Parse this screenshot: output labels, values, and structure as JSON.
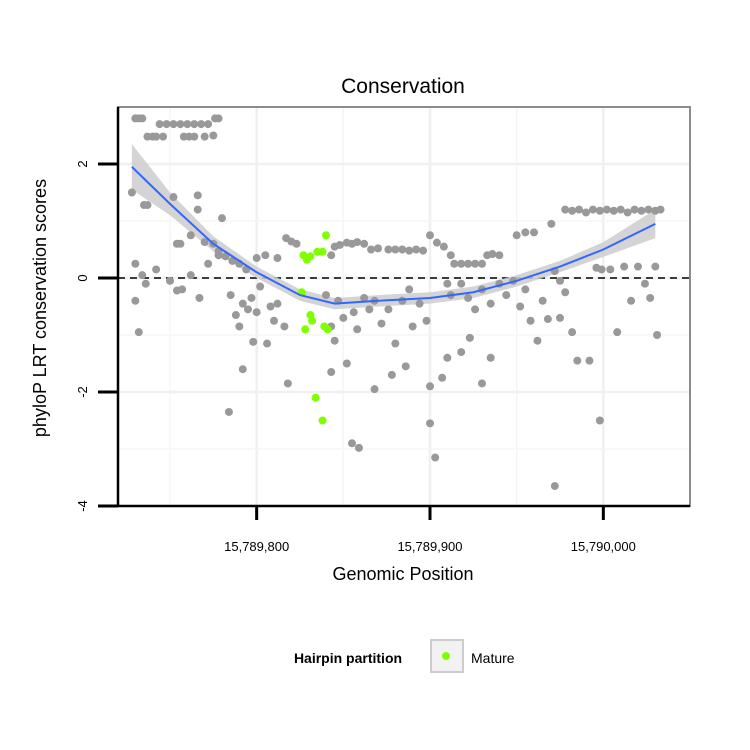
{
  "chart_data": {
    "type": "scatter",
    "title": "Conservation",
    "xlabel": "Genomic Position",
    "ylabel": "phyloP LRT conservation scores",
    "xlim": [
      15789720,
      15790050
    ],
    "ylim": [
      -4,
      3
    ],
    "x_ticks": [
      {
        "value": 15789800,
        "label": "15,789,800"
      },
      {
        "value": 15789900,
        "label": "15,789,900"
      },
      {
        "value": 15790000,
        "label": "15,790,000"
      }
    ],
    "y_ticks": [
      {
        "value": 2,
        "label": "2"
      },
      {
        "value": 0,
        "label": "0"
      },
      {
        "value": -2,
        "label": "-2"
      },
      {
        "value": -4,
        "label": "-4"
      }
    ],
    "grid": true,
    "reference_line": {
      "y": 0,
      "style": "dashed"
    },
    "legend": {
      "title": "Hairpin partition",
      "position": "bottom",
      "entries": [
        {
          "label": "Mature",
          "color": "#7FFF00"
        }
      ]
    },
    "colors": {
      "points": "#999999",
      "mature": "#7FFF00",
      "smooth": "#3366FF",
      "band": "#CCCCCC"
    },
    "series": [
      {
        "name": "",
        "color": "#999999",
        "points": [
          [
            15789730,
            2.8
          ],
          [
            15789732,
            2.8
          ],
          [
            15789734,
            2.8
          ],
          [
            15789744,
            2.7
          ],
          [
            15789748,
            2.7
          ],
          [
            15789752,
            2.7
          ],
          [
            15789756,
            2.7
          ],
          [
            15789760,
            2.7
          ],
          [
            15789764,
            2.7
          ],
          [
            15789768,
            2.7
          ],
          [
            15789772,
            2.7
          ],
          [
            15789776,
            2.8
          ],
          [
            15789778,
            2.8
          ],
          [
            15789737,
            2.48
          ],
          [
            15789740,
            2.48
          ],
          [
            15789742,
            2.48
          ],
          [
            15789746,
            2.48
          ],
          [
            15789758,
            2.48
          ],
          [
            15789761,
            2.48
          ],
          [
            15789764,
            2.48
          ],
          [
            15789770,
            2.48
          ],
          [
            15789775,
            2.5
          ],
          [
            15789728,
            1.5
          ],
          [
            15789735,
            1.28
          ],
          [
            15789737,
            1.28
          ],
          [
            15789752,
            1.42
          ],
          [
            15789766,
            1.45
          ],
          [
            15789766,
            1.2
          ],
          [
            15789780,
            1.05
          ],
          [
            15789754,
            0.6
          ],
          [
            15789756,
            0.6
          ],
          [
            15789762,
            0.75
          ],
          [
            15789770,
            0.63
          ],
          [
            15789775,
            0.6
          ],
          [
            15789778,
            0.47
          ],
          [
            15789782,
            0.38
          ],
          [
            15789786,
            0.3
          ],
          [
            15789790,
            0.25
          ],
          [
            15789794,
            0.15
          ],
          [
            15789800,
            0.35
          ],
          [
            15789805,
            0.4
          ],
          [
            15789812,
            0.35
          ],
          [
            15789817,
            0.7
          ],
          [
            15789820,
            0.64
          ],
          [
            15789823,
            0.6
          ],
          [
            15789730,
            0.25
          ],
          [
            15789734,
            0.05
          ],
          [
            15789742,
            0.15
          ],
          [
            15789750,
            -0.05
          ],
          [
            15789757,
            -0.2
          ],
          [
            15789762,
            0.05
          ],
          [
            15789767,
            -0.35
          ],
          [
            15789772,
            0.25
          ],
          [
            15789778,
            0.4
          ],
          [
            15789730,
            -0.4
          ],
          [
            15789732,
            -0.95
          ],
          [
            15789736,
            -0.1
          ],
          [
            15789754,
            -0.22
          ],
          [
            15789785,
            -0.3
          ],
          [
            15789788,
            -0.65
          ],
          [
            15789790,
            -0.85
          ],
          [
            15789792,
            -0.45
          ],
          [
            15789795,
            -0.55
          ],
          [
            15789797,
            -0.35
          ],
          [
            15789800,
            -0.6
          ],
          [
            15789802,
            -0.15
          ],
          [
            15789806,
            -1.15
          ],
          [
            15789808,
            -0.5
          ],
          [
            15789810,
            -0.75
          ],
          [
            15789812,
            -0.45
          ],
          [
            15789816,
            -0.85
          ],
          [
            15789818,
            -1.85
          ],
          [
            15789792,
            -1.6
          ],
          [
            15789798,
            -1.12
          ],
          [
            15789784,
            -2.35
          ],
          [
            15789840,
            -0.3
          ],
          [
            15789843,
            -0.85
          ],
          [
            15789845,
            -1.1
          ],
          [
            15789843,
            -1.65
          ],
          [
            15789847,
            -0.4
          ],
          [
            15789850,
            -0.7
          ],
          [
            15789852,
            -1.5
          ],
          [
            15789856,
            -0.6
          ],
          [
            15789858,
            -0.9
          ],
          [
            15789862,
            -0.35
          ],
          [
            15789865,
            -0.55
          ],
          [
            15789868,
            -0.4
          ],
          [
            15789872,
            -0.8
          ],
          [
            15789876,
            -0.55
          ],
          [
            15789880,
            -1.15
          ],
          [
            15789884,
            -0.4
          ],
          [
            15789886,
            -1.55
          ],
          [
            15789890,
            -0.85
          ],
          [
            15789894,
            -0.45
          ],
          [
            15789868,
            -1.95
          ],
          [
            15789878,
            -1.7
          ],
          [
            15789888,
            -0.2
          ],
          [
            15789898,
            -0.75
          ],
          [
            15789900,
            -1.9
          ],
          [
            15789900,
            -2.55
          ],
          [
            15789907,
            -1.75
          ],
          [
            15789910,
            -1.4
          ],
          [
            15789855,
            -2.9
          ],
          [
            15789859,
            -2.98
          ],
          [
            15789903,
            -3.15
          ],
          [
            15789930,
            -1.85
          ],
          [
            15789843,
            0.4
          ],
          [
            15789845,
            0.55
          ],
          [
            15789848,
            0.58
          ],
          [
            15789852,
            0.62
          ],
          [
            15789855,
            0.6
          ],
          [
            15789858,
            0.63
          ],
          [
            15789862,
            0.6
          ],
          [
            15789866,
            0.5
          ],
          [
            15789870,
            0.52
          ],
          [
            15789876,
            0.5
          ],
          [
            15789880,
            0.5
          ],
          [
            15789884,
            0.5
          ],
          [
            15789888,
            0.48
          ],
          [
            15789892,
            0.5
          ],
          [
            15789896,
            0.48
          ],
          [
            15789900,
            0.75
          ],
          [
            15789904,
            0.62
          ],
          [
            15789908,
            0.55
          ],
          [
            15789912,
            0.4
          ],
          [
            15789914,
            0.25
          ],
          [
            15789918,
            0.25
          ],
          [
            15789922,
            0.25
          ],
          [
            15789926,
            0.25
          ],
          [
            15789930,
            0.25
          ],
          [
            15789933,
            0.4
          ],
          [
            15789936,
            0.42
          ],
          [
            15789940,
            0.4
          ],
          [
            15789910,
            -0.1
          ],
          [
            15789912,
            -0.3
          ],
          [
            15789918,
            -0.1
          ],
          [
            15789922,
            -0.35
          ],
          [
            15789926,
            -0.55
          ],
          [
            15789930,
            -0.2
          ],
          [
            15789935,
            -0.45
          ],
          [
            15789940,
            -0.1
          ],
          [
            15789944,
            -0.3
          ],
          [
            15789948,
            -0.05
          ],
          [
            15789952,
            -0.5
          ],
          [
            15789955,
            -0.2
          ],
          [
            15789958,
            -0.75
          ],
          [
            15789962,
            -1.1
          ],
          [
            15789965,
            -0.4
          ],
          [
            15789968,
            -0.72
          ],
          [
            15789972,
            0.12
          ],
          [
            15789975,
            -0.05
          ],
          [
            15789978,
            -0.25
          ],
          [
            15789918,
            -1.3
          ],
          [
            15789923,
            -1.05
          ],
          [
            15789935,
            -1.4
          ],
          [
            15789950,
            0.75
          ],
          [
            15789955,
            0.8
          ],
          [
            15789960,
            0.8
          ],
          [
            15789970,
            0.95
          ],
          [
            15789975,
            -0.7
          ],
          [
            15789982,
            -0.95
          ],
          [
            15789985,
            -1.45
          ],
          [
            15789992,
            -1.45
          ],
          [
            15789996,
            0.18
          ],
          [
            15789999,
            0.15
          ],
          [
            15790004,
            0.15
          ],
          [
            15790008,
            -0.95
          ],
          [
            15790012,
            0.2
          ],
          [
            15790016,
            -0.4
          ],
          [
            15790020,
            0.2
          ],
          [
            15790024,
            -0.1
          ],
          [
            15790027,
            -0.35
          ],
          [
            15790030,
            0.2
          ],
          [
            15790031,
            -1.0
          ],
          [
            15789978,
            1.2
          ],
          [
            15789982,
            1.18
          ],
          [
            15789986,
            1.2
          ],
          [
            15789990,
            1.15
          ],
          [
            15789994,
            1.2
          ],
          [
            15789998,
            1.18
          ],
          [
            15790002,
            1.2
          ],
          [
            15790006,
            1.18
          ],
          [
            15790010,
            1.2
          ],
          [
            15790014,
            1.15
          ],
          [
            15790018,
            1.2
          ],
          [
            15790022,
            1.18
          ],
          [
            15790026,
            1.2
          ],
          [
            15790030,
            1.18
          ],
          [
            15790033,
            1.2
          ],
          [
            15789998,
            -2.5
          ],
          [
            15789972,
            -3.65
          ]
        ]
      },
      {
        "name": "Mature",
        "color": "#7FFF00",
        "points": [
          [
            15789827,
            0.4
          ],
          [
            15789829,
            0.32
          ],
          [
            15789831,
            0.38
          ],
          [
            15789835,
            0.46
          ],
          [
            15789838,
            0.46
          ],
          [
            15789840,
            0.75
          ],
          [
            15789826,
            -0.25
          ],
          [
            15789828,
            -0.9
          ],
          [
            15789831,
            -0.65
          ],
          [
            15789832,
            -0.75
          ],
          [
            15789839,
            -0.85
          ],
          [
            15789841,
            -0.9
          ],
          [
            15789834,
            -2.1
          ],
          [
            15789838,
            -2.5
          ]
        ]
      }
    ],
    "smooth": {
      "x": [
        15789728,
        15789750,
        15789775,
        15789800,
        15789825,
        15789845,
        15789870,
        15789900,
        15789925,
        15789950,
        15789975,
        15790000,
        15790030
      ],
      "y": [
        1.95,
        1.3,
        0.6,
        0.1,
        -0.3,
        -0.45,
        -0.4,
        -0.35,
        -0.25,
        -0.05,
        0.2,
        0.5,
        0.95
      ],
      "band_halfwidth": [
        0.4,
        0.2,
        0.13,
        0.1,
        0.1,
        0.1,
        0.1,
        0.1,
        0.1,
        0.1,
        0.1,
        0.13,
        0.25
      ]
    }
  }
}
